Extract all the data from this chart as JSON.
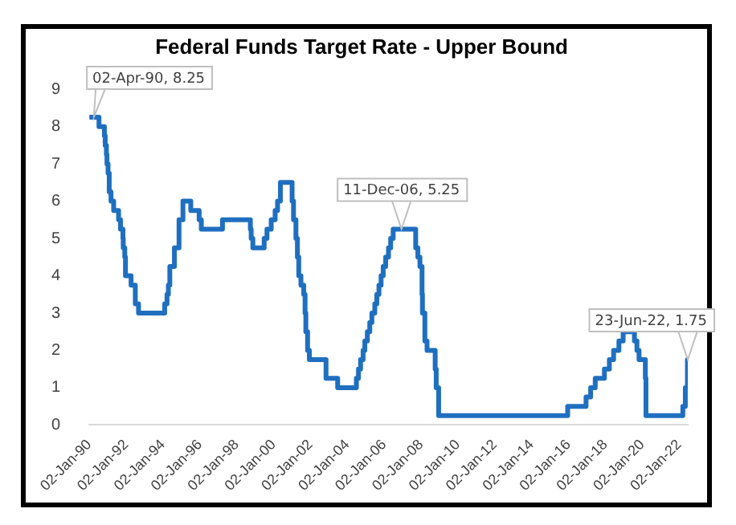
{
  "chart_data": {
    "type": "step",
    "title": "Federal Funds Target Rate - Upper Bound",
    "x": [
      "1990-01-02",
      "1990-07-13",
      "1990-10-29",
      "1990-11-13",
      "1990-12-07",
      "1990-12-18",
      "1991-01-09",
      "1991-02-01",
      "1991-03-08",
      "1991-04-30",
      "1991-08-06",
      "1991-09-13",
      "1991-10-31",
      "1991-11-06",
      "1991-12-06",
      "1991-12-20",
      "1992-04-09",
      "1992-07-02",
      "1992-09-04",
      "1994-02-04",
      "1994-03-22",
      "1994-04-18",
      "1994-05-17",
      "1994-08-16",
      "1994-11-15",
      "1995-02-01",
      "1995-07-06",
      "1995-12-19",
      "1996-01-31",
      "1997-03-25",
      "1998-09-29",
      "1998-10-15",
      "1998-11-17",
      "1999-06-30",
      "1999-08-24",
      "1999-11-16",
      "2000-02-02",
      "2000-03-21",
      "2000-05-16",
      "2001-01-03",
      "2001-01-31",
      "2001-03-20",
      "2001-04-18",
      "2001-05-15",
      "2001-06-27",
      "2001-08-21",
      "2001-09-17",
      "2001-10-02",
      "2001-11-06",
      "2001-12-11",
      "2002-11-06",
      "2003-06-25",
      "2004-06-30",
      "2004-08-10",
      "2004-09-21",
      "2004-11-10",
      "2004-12-14",
      "2005-02-02",
      "2005-03-22",
      "2005-05-03",
      "2005-06-30",
      "2005-08-09",
      "2005-09-20",
      "2005-11-01",
      "2005-12-13",
      "2006-01-31",
      "2006-03-28",
      "2006-05-10",
      "2006-06-29",
      "2007-09-18",
      "2007-10-31",
      "2007-12-11",
      "2008-01-22",
      "2008-01-30",
      "2008-03-18",
      "2008-04-30",
      "2008-10-08",
      "2008-10-29",
      "2008-12-16",
      "2015-12-17",
      "2016-12-15",
      "2017-03-16",
      "2017-06-15",
      "2017-12-14",
      "2018-03-22",
      "2018-06-14",
      "2018-09-27",
      "2018-12-20",
      "2019-08-01",
      "2019-09-19",
      "2019-10-31",
      "2020-03-04",
      "2020-03-16",
      "2022-03-17",
      "2022-05-05",
      "2022-06-16",
      "2022-06-23"
    ],
    "series": [
      {
        "color": "#1f6fc0",
        "values": [
          8.25,
          8.0,
          7.75,
          7.5,
          7.25,
          7.0,
          6.75,
          6.25,
          6.0,
          5.75,
          5.5,
          5.25,
          5.0,
          4.75,
          4.5,
          4.0,
          3.75,
          3.25,
          3.0,
          3.25,
          3.5,
          3.75,
          4.25,
          4.75,
          5.5,
          6.0,
          5.75,
          5.5,
          5.25,
          5.5,
          5.25,
          5.0,
          4.75,
          5.0,
          5.25,
          5.5,
          5.75,
          6.0,
          6.5,
          6.0,
          5.5,
          5.0,
          4.5,
          4.0,
          3.75,
          3.5,
          3.0,
          2.5,
          2.0,
          1.75,
          1.25,
          1.0,
          1.25,
          1.5,
          1.75,
          2.0,
          2.25,
          2.5,
          2.75,
          3.0,
          3.25,
          3.5,
          3.75,
          4.0,
          4.25,
          4.5,
          4.75,
          5.0,
          5.25,
          4.75,
          4.5,
          4.25,
          3.5,
          3.0,
          2.25,
          2.0,
          1.5,
          1.0,
          0.25,
          0.5,
          0.75,
          1.0,
          1.25,
          1.5,
          1.75,
          2.0,
          2.25,
          2.5,
          2.25,
          2.0,
          1.75,
          1.25,
          0.25,
          0.5,
          1.0,
          1.75,
          1.75
        ]
      }
    ],
    "xlim": [
      "1990-01-02",
      "2022-06-23"
    ],
    "xticks": [
      {
        "value": "1990-01-02",
        "label": "02-Jan-90"
      },
      {
        "value": "1992-01-02",
        "label": "02-Jan-92"
      },
      {
        "value": "1994-01-02",
        "label": "02-Jan-94"
      },
      {
        "value": "1996-01-02",
        "label": "02-Jan-96"
      },
      {
        "value": "1998-01-02",
        "label": "02-Jan-98"
      },
      {
        "value": "2000-01-02",
        "label": "02-Jan-00"
      },
      {
        "value": "2002-01-02",
        "label": "02-Jan-02"
      },
      {
        "value": "2004-01-02",
        "label": "02-Jan-04"
      },
      {
        "value": "2006-01-02",
        "label": "02-Jan-06"
      },
      {
        "value": "2008-01-02",
        "label": "02-Jan-08"
      },
      {
        "value": "2010-01-02",
        "label": "02-Jan-10"
      },
      {
        "value": "2012-01-02",
        "label": "02-Jan-12"
      },
      {
        "value": "2014-01-02",
        "label": "02-Jan-14"
      },
      {
        "value": "2016-01-02",
        "label": "02-Jan-16"
      },
      {
        "value": "2018-01-02",
        "label": "02-Jan-18"
      },
      {
        "value": "2020-01-02",
        "label": "02-Jan-20"
      },
      {
        "value": "2022-01-02",
        "label": "02-Jan-22"
      }
    ],
    "ylim": [
      0,
      9
    ],
    "yticks": [
      0,
      1,
      2,
      3,
      4,
      5,
      6,
      7,
      8,
      9
    ],
    "annotations": [
      {
        "text": "02-Apr-90, 8.25",
        "x": "1990-04-02",
        "y": 8.25
      },
      {
        "text": "11-Dec-06, 5.25",
        "x": "2006-12-11",
        "y": 5.25
      },
      {
        "text": "23-Jun-22, 1.75",
        "x": "2022-06-23",
        "y": 1.75
      }
    ]
  }
}
